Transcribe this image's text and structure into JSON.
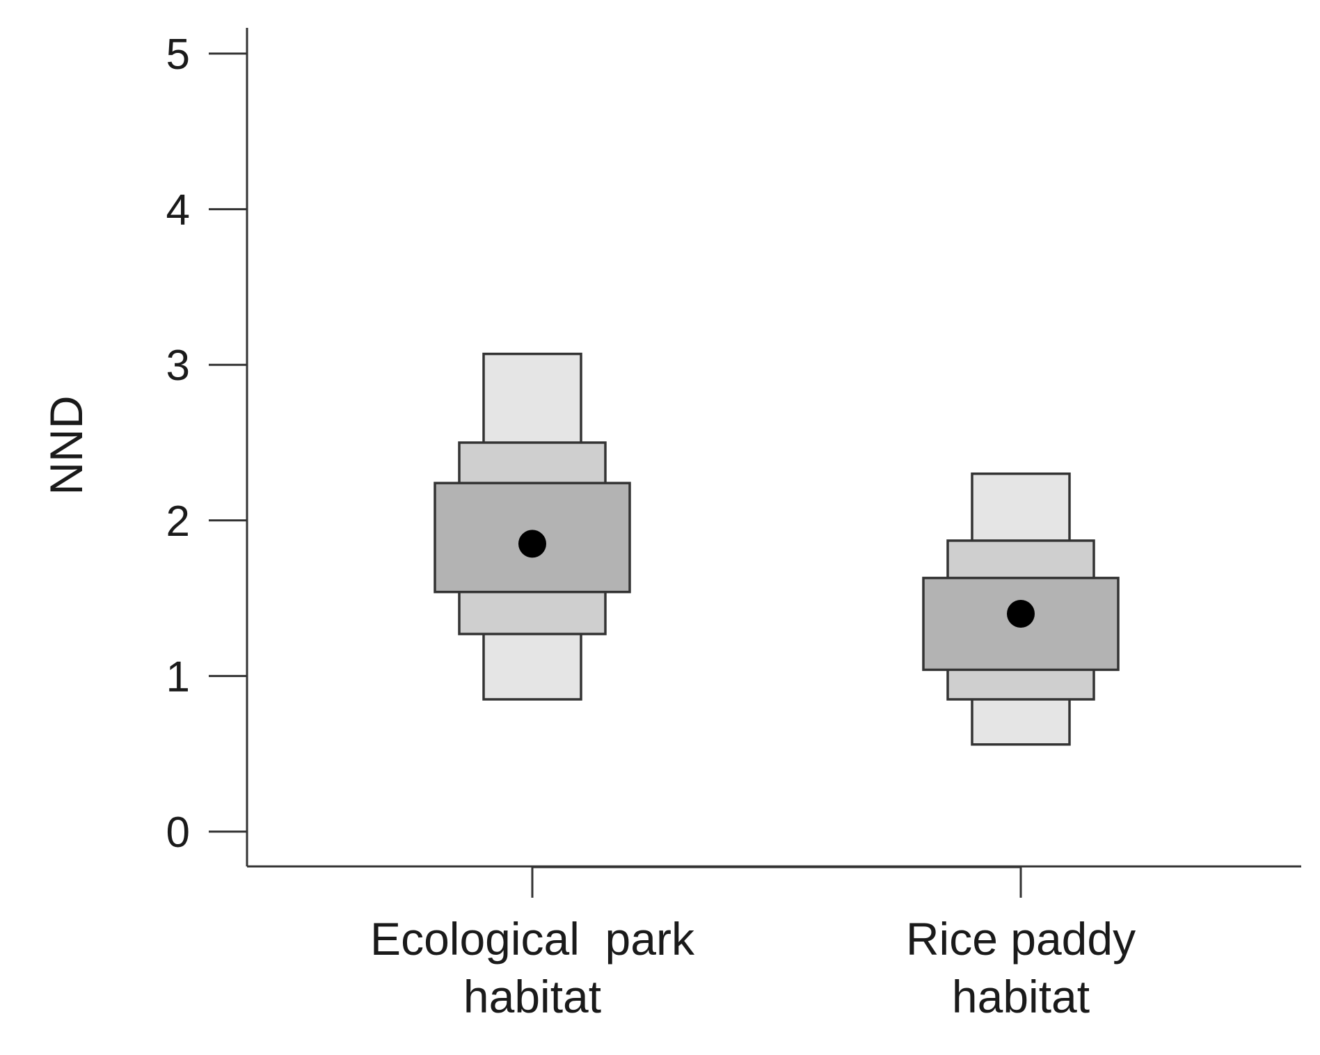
{
  "chart_data": {
    "type": "boxplot",
    "ylabel": "NND",
    "xlabel": "",
    "ylim": [
      0,
      5
    ],
    "yticks": [
      "0",
      "1",
      "2",
      "3",
      "4",
      "5"
    ],
    "grid": false,
    "categories": [
      {
        "lines": [
          "Ecological  park",
          "habitat"
        ]
      },
      {
        "lines": [
          "Rice paddy",
          "habitat"
        ]
      }
    ],
    "groups": [
      {
        "median": 1.85,
        "bands": [
          {
            "level": "outer",
            "low": 0.85,
            "high": 3.07
          },
          {
            "level": "middle",
            "low": 1.27,
            "high": 2.5
          },
          {
            "level": "inner",
            "low": 1.54,
            "high": 2.24
          }
        ]
      },
      {
        "median": 1.4,
        "bands": [
          {
            "level": "outer",
            "low": 0.56,
            "high": 2.3
          },
          {
            "level": "middle",
            "low": 0.85,
            "high": 1.87
          },
          {
            "level": "inner",
            "low": 1.04,
            "high": 1.63
          }
        ]
      }
    ],
    "colors": {
      "outer": "#e5e5e5",
      "middle": "#cfcfcf",
      "inner": "#b3b3b3",
      "median": "#000000"
    }
  }
}
